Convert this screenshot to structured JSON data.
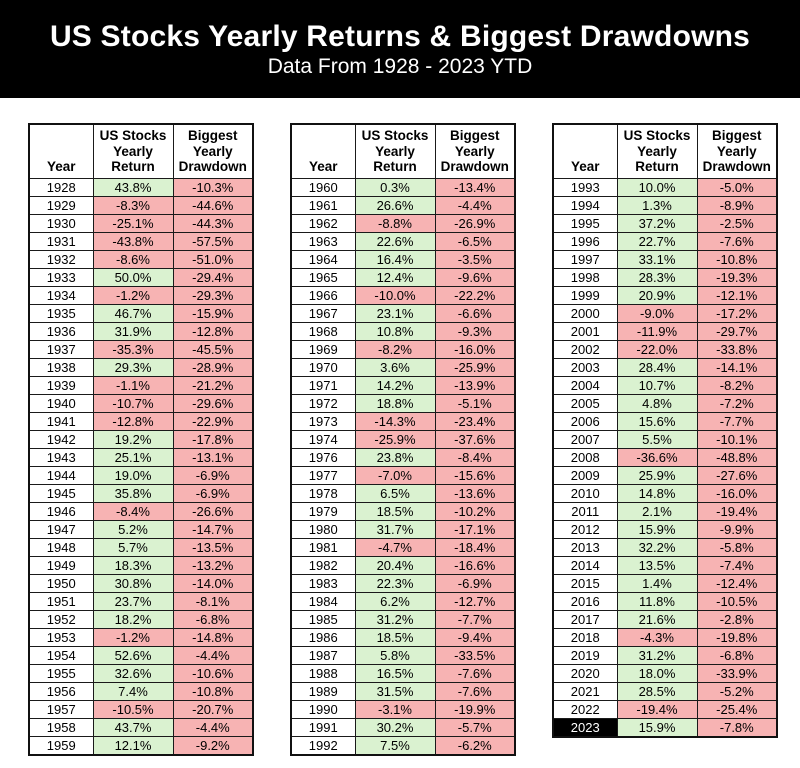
{
  "colors": {
    "banner_bg": "#000000",
    "banner_fg": "#ffffff",
    "positive_bg": "#daf2d0",
    "negative_bg": "#f7b3b3",
    "highlight_year_bg": "#000000",
    "highlight_year_fg": "#ffffff",
    "grid_border": "#1a1a1a"
  },
  "chart_data": {
    "type": "table",
    "title": "US Stocks Yearly Returns & Biggest Drawdowns",
    "subtitle": "Data From 1928 - 2023 YTD",
    "columns": [
      "Year",
      "US Stocks Yearly Return",
      "Biggest Yearly Drawdown"
    ],
    "highlight_year": "2023",
    "tables": [
      {
        "rows": [
          [
            "1928",
            "43.8%",
            "-10.3%"
          ],
          [
            "1929",
            "-8.3%",
            "-44.6%"
          ],
          [
            "1930",
            "-25.1%",
            "-44.3%"
          ],
          [
            "1931",
            "-43.8%",
            "-57.5%"
          ],
          [
            "1932",
            "-8.6%",
            "-51.0%"
          ],
          [
            "1933",
            "50.0%",
            "-29.4%"
          ],
          [
            "1934",
            "-1.2%",
            "-29.3%"
          ],
          [
            "1935",
            "46.7%",
            "-15.9%"
          ],
          [
            "1936",
            "31.9%",
            "-12.8%"
          ],
          [
            "1937",
            "-35.3%",
            "-45.5%"
          ],
          [
            "1938",
            "29.3%",
            "-28.9%"
          ],
          [
            "1939",
            "-1.1%",
            "-21.2%"
          ],
          [
            "1940",
            "-10.7%",
            "-29.6%"
          ],
          [
            "1941",
            "-12.8%",
            "-22.9%"
          ],
          [
            "1942",
            "19.2%",
            "-17.8%"
          ],
          [
            "1943",
            "25.1%",
            "-13.1%"
          ],
          [
            "1944",
            "19.0%",
            "-6.9%"
          ],
          [
            "1945",
            "35.8%",
            "-6.9%"
          ],
          [
            "1946",
            "-8.4%",
            "-26.6%"
          ],
          [
            "1947",
            "5.2%",
            "-14.7%"
          ],
          [
            "1948",
            "5.7%",
            "-13.5%"
          ],
          [
            "1949",
            "18.3%",
            "-13.2%"
          ],
          [
            "1950",
            "30.8%",
            "-14.0%"
          ],
          [
            "1951",
            "23.7%",
            "-8.1%"
          ],
          [
            "1952",
            "18.2%",
            "-6.8%"
          ],
          [
            "1953",
            "-1.2%",
            "-14.8%"
          ],
          [
            "1954",
            "52.6%",
            "-4.4%"
          ],
          [
            "1955",
            "32.6%",
            "-10.6%"
          ],
          [
            "1956",
            "7.4%",
            "-10.8%"
          ],
          [
            "1957",
            "-10.5%",
            "-20.7%"
          ],
          [
            "1958",
            "43.7%",
            "-4.4%"
          ],
          [
            "1959",
            "12.1%",
            "-9.2%"
          ]
        ]
      },
      {
        "rows": [
          [
            "1960",
            "0.3%",
            "-13.4%"
          ],
          [
            "1961",
            "26.6%",
            "-4.4%"
          ],
          [
            "1962",
            "-8.8%",
            "-26.9%"
          ],
          [
            "1963",
            "22.6%",
            "-6.5%"
          ],
          [
            "1964",
            "16.4%",
            "-3.5%"
          ],
          [
            "1965",
            "12.4%",
            "-9.6%"
          ],
          [
            "1966",
            "-10.0%",
            "-22.2%"
          ],
          [
            "1967",
            "23.1%",
            "-6.6%"
          ],
          [
            "1968",
            "10.8%",
            "-9.3%"
          ],
          [
            "1969",
            "-8.2%",
            "-16.0%"
          ],
          [
            "1970",
            "3.6%",
            "-25.9%"
          ],
          [
            "1971",
            "14.2%",
            "-13.9%"
          ],
          [
            "1972",
            "18.8%",
            "-5.1%"
          ],
          [
            "1973",
            "-14.3%",
            "-23.4%"
          ],
          [
            "1974",
            "-25.9%",
            "-37.6%"
          ],
          [
            "1976",
            "23.8%",
            "-8.4%"
          ],
          [
            "1977",
            "-7.0%",
            "-15.6%"
          ],
          [
            "1978",
            "6.5%",
            "-13.6%"
          ],
          [
            "1979",
            "18.5%",
            "-10.2%"
          ],
          [
            "1980",
            "31.7%",
            "-17.1%"
          ],
          [
            "1981",
            "-4.7%",
            "-18.4%"
          ],
          [
            "1982",
            "20.4%",
            "-16.6%"
          ],
          [
            "1983",
            "22.3%",
            "-6.9%"
          ],
          [
            "1984",
            "6.2%",
            "-12.7%"
          ],
          [
            "1985",
            "31.2%",
            "-7.7%"
          ],
          [
            "1986",
            "18.5%",
            "-9.4%"
          ],
          [
            "1987",
            "5.8%",
            "-33.5%"
          ],
          [
            "1988",
            "16.5%",
            "-7.6%"
          ],
          [
            "1989",
            "31.5%",
            "-7.6%"
          ],
          [
            "1990",
            "-3.1%",
            "-19.9%"
          ],
          [
            "1991",
            "30.2%",
            "-5.7%"
          ],
          [
            "1992",
            "7.5%",
            "-6.2%"
          ]
        ]
      },
      {
        "rows": [
          [
            "1993",
            "10.0%",
            "-5.0%"
          ],
          [
            "1994",
            "1.3%",
            "-8.9%"
          ],
          [
            "1995",
            "37.2%",
            "-2.5%"
          ],
          [
            "1996",
            "22.7%",
            "-7.6%"
          ],
          [
            "1997",
            "33.1%",
            "-10.8%"
          ],
          [
            "1998",
            "28.3%",
            "-19.3%"
          ],
          [
            "1999",
            "20.9%",
            "-12.1%"
          ],
          [
            "2000",
            "-9.0%",
            "-17.2%"
          ],
          [
            "2001",
            "-11.9%",
            "-29.7%"
          ],
          [
            "2002",
            "-22.0%",
            "-33.8%"
          ],
          [
            "2003",
            "28.4%",
            "-14.1%"
          ],
          [
            "2004",
            "10.7%",
            "-8.2%"
          ],
          [
            "2005",
            "4.8%",
            "-7.2%"
          ],
          [
            "2006",
            "15.6%",
            "-7.7%"
          ],
          [
            "2007",
            "5.5%",
            "-10.1%"
          ],
          [
            "2008",
            "-36.6%",
            "-48.8%"
          ],
          [
            "2009",
            "25.9%",
            "-27.6%"
          ],
          [
            "2010",
            "14.8%",
            "-16.0%"
          ],
          [
            "2011",
            "2.1%",
            "-19.4%"
          ],
          [
            "2012",
            "15.9%",
            "-9.9%"
          ],
          [
            "2013",
            "32.2%",
            "-5.8%"
          ],
          [
            "2014",
            "13.5%",
            "-7.4%"
          ],
          [
            "2015",
            "1.4%",
            "-12.4%"
          ],
          [
            "2016",
            "11.8%",
            "-10.5%"
          ],
          [
            "2017",
            "21.6%",
            "-2.8%"
          ],
          [
            "2018",
            "-4.3%",
            "-19.8%"
          ],
          [
            "2019",
            "31.2%",
            "-6.8%"
          ],
          [
            "2020",
            "18.0%",
            "-33.9%"
          ],
          [
            "2021",
            "28.5%",
            "-5.2%"
          ],
          [
            "2022",
            "-19.4%",
            "-25.4%"
          ],
          [
            "2023",
            "15.9%",
            "-7.8%"
          ]
        ]
      }
    ]
  }
}
